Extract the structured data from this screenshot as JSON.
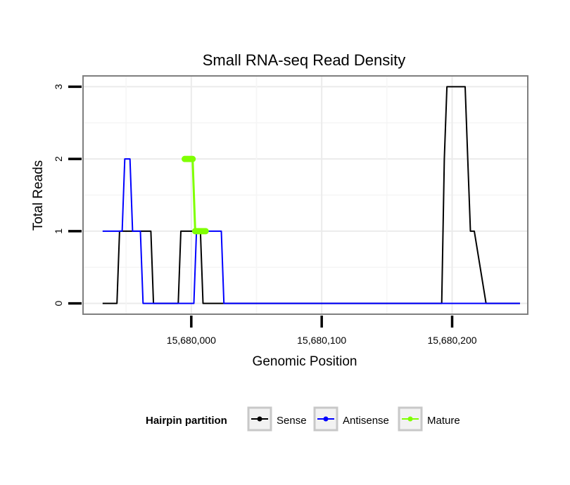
{
  "chart_data": {
    "type": "line",
    "title": "Small RNA-seq Read Density",
    "xlabel": "Genomic Position",
    "ylabel": "Total Reads",
    "xlim": [
      15679917,
      15680258
    ],
    "ylim": [
      -0.15,
      3.15
    ],
    "x_ticks": [
      {
        "value": 15680000,
        "label": "15,680,000"
      },
      {
        "value": 15680100,
        "label": "15,680,100"
      },
      {
        "value": 15680200,
        "label": "15,680,200"
      }
    ],
    "y_ticks": [
      {
        "value": 0,
        "label": "0"
      },
      {
        "value": 1,
        "label": "1"
      },
      {
        "value": 2,
        "label": "2"
      },
      {
        "value": 3,
        "label": "3"
      }
    ],
    "grid": true,
    "legend": {
      "title": "Hairpin partition",
      "position": "bottom",
      "entries": [
        "Sense",
        "Antisense",
        "Mature"
      ]
    },
    "series": [
      {
        "name": "Sense",
        "color": "#000000",
        "x": [
          15679932,
          15679943,
          15679945,
          15679969,
          15679971,
          15679979,
          15679980,
          15679981,
          15679990,
          15679992,
          15680007,
          15680009,
          15680010,
          15680012,
          15680192,
          15680194,
          15680196,
          15680210,
          15680212,
          15680214,
          15680217,
          15680226,
          15680241,
          15680243,
          15680252
        ],
        "values": [
          0,
          0,
          1,
          1,
          0,
          0,
          0,
          0,
          0,
          1,
          1,
          0,
          0,
          0,
          0,
          2,
          3,
          3,
          2,
          1,
          1,
          0,
          0,
          0,
          0
        ]
      },
      {
        "name": "Antisense",
        "color": "#0000ff",
        "x": [
          15679932,
          15679947,
          15679949,
          15679953,
          15679955,
          15679961,
          15679963,
          15680002,
          15680004,
          15680023,
          15680025,
          15680252
        ],
        "values": [
          1,
          1,
          2,
          2,
          1,
          1,
          0,
          0,
          1,
          1,
          0,
          0
        ]
      },
      {
        "name": "Mature",
        "color": "#7fff00",
        "x": [
          15679995,
          15679996,
          15679997,
          15679998,
          15679999,
          15680000,
          15680001,
          15680003,
          15680004,
          15680005,
          15680006,
          15680007,
          15680008,
          15680009,
          15680010,
          15680011
        ],
        "values": [
          2,
          2,
          2,
          2,
          2,
          2,
          2,
          1,
          1,
          1,
          1,
          1,
          1,
          1,
          1,
          1
        ]
      }
    ]
  }
}
